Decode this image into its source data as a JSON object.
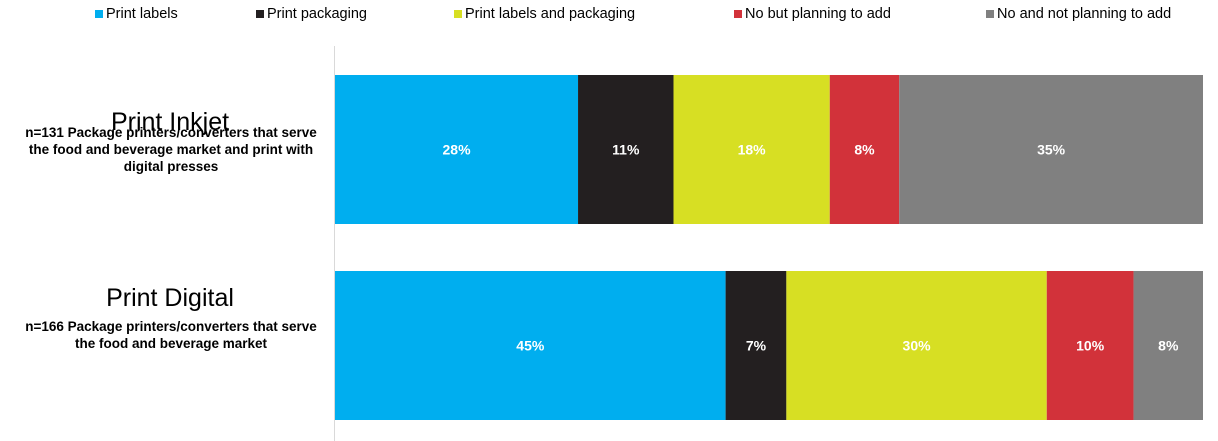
{
  "chart_data": {
    "type": "bar",
    "orientation": "horizontal",
    "stacked": true,
    "legend_position": "top",
    "categories": [
      {
        "title": "Print Inkjet",
        "subtitle": "n=131 Package printers/converters that serve the food and beverage market and print with digital presses"
      },
      {
        "title": "Print Digital",
        "subtitle": "n=166 Package printers/converters that serve the food and beverage market"
      }
    ],
    "series": [
      {
        "name": "Print labels",
        "color": "#00aeef",
        "values": [
          28,
          45
        ],
        "labels": [
          "28%",
          "45%"
        ]
      },
      {
        "name": "Print packaging",
        "color": "#231f20",
        "values": [
          11,
          7
        ],
        "labels": [
          "11%",
          "7%"
        ]
      },
      {
        "name": "Print labels and packaging",
        "color": "#d7df23",
        "values": [
          18,
          30
        ],
        "labels": [
          "18%",
          "30%"
        ]
      },
      {
        "name": "No but planning to add",
        "color": "#d2323a",
        "values": [
          8,
          10
        ],
        "labels": [
          "8%",
          "10%"
        ]
      },
      {
        "name": "No and not planning to add",
        "color": "#808080",
        "values": [
          35,
          8
        ],
        "labels": [
          "35%",
          "8%"
        ]
      }
    ],
    "xlim": [
      0,
      100
    ],
    "grid": false
  }
}
